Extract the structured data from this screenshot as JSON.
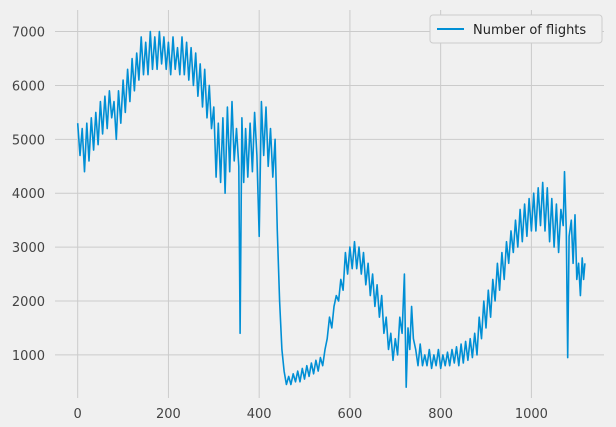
{
  "chart_data": {
    "type": "line",
    "title": "",
    "xlabel": "",
    "ylabel": "",
    "xlim": [
      -50,
      1160
    ],
    "ylim": [
      200,
      7400
    ],
    "grid": true,
    "legend_placement": "top-right",
    "x_ticks": [
      0,
      200,
      400,
      600,
      800,
      1000
    ],
    "y_ticks": [
      1000,
      2000,
      3000,
      4000,
      5000,
      6000,
      7000
    ],
    "series": [
      {
        "name": "Number of flights",
        "color": "#008fd5",
        "points": [
          [
            0,
            5300
          ],
          [
            5,
            4700
          ],
          [
            10,
            5200
          ],
          [
            15,
            4400
          ],
          [
            20,
            5300
          ],
          [
            25,
            4600
          ],
          [
            30,
            5400
          ],
          [
            35,
            4800
          ],
          [
            40,
            5500
          ],
          [
            45,
            4900
          ],
          [
            50,
            5700
          ],
          [
            55,
            5100
          ],
          [
            60,
            5800
          ],
          [
            65,
            5200
          ],
          [
            70,
            5900
          ],
          [
            75,
            5400
          ],
          [
            80,
            5700
          ],
          [
            85,
            5000
          ],
          [
            90,
            5900
          ],
          [
            95,
            5300
          ],
          [
            100,
            6100
          ],
          [
            105,
            5500
          ],
          [
            110,
            6300
          ],
          [
            115,
            5700
          ],
          [
            120,
            6500
          ],
          [
            125,
            5900
          ],
          [
            130,
            6600
          ],
          [
            135,
            6100
          ],
          [
            140,
            6900
          ],
          [
            145,
            6200
          ],
          [
            150,
            6800
          ],
          [
            155,
            6200
          ],
          [
            160,
            7000
          ],
          [
            165,
            6300
          ],
          [
            170,
            6900
          ],
          [
            175,
            6300
          ],
          [
            180,
            7000
          ],
          [
            185,
            6400
          ],
          [
            190,
            6900
          ],
          [
            195,
            6300
          ],
          [
            200,
            6800
          ],
          [
            205,
            6200
          ],
          [
            210,
            6900
          ],
          [
            215,
            6300
          ],
          [
            220,
            6700
          ],
          [
            225,
            6200
          ],
          [
            230,
            6900
          ],
          [
            235,
            6200
          ],
          [
            240,
            6800
          ],
          [
            245,
            6100
          ],
          [
            250,
            6700
          ],
          [
            255,
            6000
          ],
          [
            260,
            6600
          ],
          [
            265,
            5800
          ],
          [
            270,
            6400
          ],
          [
            275,
            5600
          ],
          [
            280,
            6300
          ],
          [
            285,
            5400
          ],
          [
            290,
            6000
          ],
          [
            295,
            5200
          ],
          [
            300,
            5600
          ],
          [
            305,
            4300
          ],
          [
            310,
            5300
          ],
          [
            315,
            4200
          ],
          [
            320,
            5400
          ],
          [
            325,
            4000
          ],
          [
            330,
            5600
          ],
          [
            335,
            4400
          ],
          [
            340,
            5700
          ],
          [
            345,
            4600
          ],
          [
            350,
            5200
          ],
          [
            355,
            4500
          ],
          [
            358,
            1400
          ],
          [
            362,
            5400
          ],
          [
            366,
            4200
          ],
          [
            370,
            5200
          ],
          [
            375,
            4300
          ],
          [
            380,
            5300
          ],
          [
            385,
            4400
          ],
          [
            390,
            5500
          ],
          [
            395,
            4700
          ],
          [
            400,
            3200
          ],
          [
            405,
            5700
          ],
          [
            410,
            4700
          ],
          [
            415,
            5600
          ],
          [
            420,
            4500
          ],
          [
            425,
            5200
          ],
          [
            430,
            4300
          ],
          [
            435,
            5000
          ],
          [
            440,
            3300
          ],
          [
            445,
            2000
          ],
          [
            450,
            1100
          ],
          [
            455,
            700
          ],
          [
            460,
            450
          ],
          [
            465,
            600
          ],
          [
            470,
            450
          ],
          [
            475,
            650
          ],
          [
            480,
            500
          ],
          [
            485,
            700
          ],
          [
            490,
            500
          ],
          [
            495,
            750
          ],
          [
            500,
            550
          ],
          [
            505,
            800
          ],
          [
            510,
            600
          ],
          [
            515,
            850
          ],
          [
            520,
            650
          ],
          [
            525,
            900
          ],
          [
            530,
            700
          ],
          [
            535,
            950
          ],
          [
            540,
            800
          ],
          [
            545,
            1100
          ],
          [
            550,
            1300
          ],
          [
            555,
            1700
          ],
          [
            560,
            1500
          ],
          [
            565,
            1900
          ],
          [
            570,
            2100
          ],
          [
            575,
            2000
          ],
          [
            580,
            2400
          ],
          [
            585,
            2200
          ],
          [
            590,
            2900
          ],
          [
            595,
            2500
          ],
          [
            600,
            3000
          ],
          [
            605,
            2600
          ],
          [
            610,
            3100
          ],
          [
            615,
            2600
          ],
          [
            620,
            3000
          ],
          [
            625,
            2500
          ],
          [
            630,
            2900
          ],
          [
            635,
            2300
          ],
          [
            640,
            2700
          ],
          [
            645,
            2100
          ],
          [
            650,
            2500
          ],
          [
            655,
            1900
          ],
          [
            660,
            2300
          ],
          [
            665,
            1700
          ],
          [
            670,
            2100
          ],
          [
            675,
            1400
          ],
          [
            680,
            1700
          ],
          [
            685,
            1100
          ],
          [
            690,
            1400
          ],
          [
            695,
            900
          ],
          [
            700,
            1300
          ],
          [
            705,
            1000
          ],
          [
            710,
            1700
          ],
          [
            715,
            1400
          ],
          [
            720,
            2500
          ],
          [
            724,
            400
          ],
          [
            728,
            1500
          ],
          [
            732,
            1100
          ],
          [
            736,
            1900
          ],
          [
            740,
            1300
          ],
          [
            745,
            1100
          ],
          [
            750,
            800
          ],
          [
            755,
            1200
          ],
          [
            760,
            800
          ],
          [
            765,
            1000
          ],
          [
            770,
            800
          ],
          [
            775,
            1100
          ],
          [
            780,
            750
          ],
          [
            785,
            1000
          ],
          [
            790,
            800
          ],
          [
            795,
            1100
          ],
          [
            800,
            750
          ],
          [
            805,
            1000
          ],
          [
            810,
            800
          ],
          [
            815,
            1050
          ],
          [
            820,
            800
          ],
          [
            825,
            1100
          ],
          [
            830,
            850
          ],
          [
            835,
            1150
          ],
          [
            840,
            800
          ],
          [
            845,
            1200
          ],
          [
            850,
            850
          ],
          [
            855,
            1250
          ],
          [
            860,
            900
          ],
          [
            865,
            1300
          ],
          [
            870,
            950
          ],
          [
            875,
            1400
          ],
          [
            880,
            1000
          ],
          [
            885,
            1700
          ],
          [
            890,
            1300
          ],
          [
            895,
            2000
          ],
          [
            900,
            1500
          ],
          [
            905,
            2200
          ],
          [
            910,
            1700
          ],
          [
            915,
            2400
          ],
          [
            920,
            2000
          ],
          [
            925,
            2700
          ],
          [
            930,
            2200
          ],
          [
            935,
            2900
          ],
          [
            940,
            2400
          ],
          [
            945,
            3100
          ],
          [
            950,
            2700
          ],
          [
            955,
            3300
          ],
          [
            960,
            2900
          ],
          [
            965,
            3500
          ],
          [
            970,
            3000
          ],
          [
            975,
            3700
          ],
          [
            980,
            3100
          ],
          [
            985,
            3800
          ],
          [
            990,
            3200
          ],
          [
            995,
            3900
          ],
          [
            1000,
            3300
          ],
          [
            1005,
            4000
          ],
          [
            1010,
            3300
          ],
          [
            1015,
            4100
          ],
          [
            1020,
            3400
          ],
          [
            1025,
            4200
          ],
          [
            1030,
            3300
          ],
          [
            1035,
            4100
          ],
          [
            1040,
            3100
          ],
          [
            1045,
            3900
          ],
          [
            1050,
            3000
          ],
          [
            1055,
            3800
          ],
          [
            1060,
            2900
          ],
          [
            1065,
            3700
          ],
          [
            1070,
            3400
          ],
          [
            1073,
            4400
          ],
          [
            1077,
            3300
          ],
          [
            1080,
            950
          ],
          [
            1083,
            3200
          ],
          [
            1088,
            3500
          ],
          [
            1092,
            2700
          ],
          [
            1096,
            3600
          ],
          [
            1100,
            2400
          ],
          [
            1104,
            2700
          ],
          [
            1108,
            2100
          ],
          [
            1112,
            2800
          ],
          [
            1115,
            2400
          ],
          [
            1118,
            2700
          ]
        ]
      }
    ]
  }
}
